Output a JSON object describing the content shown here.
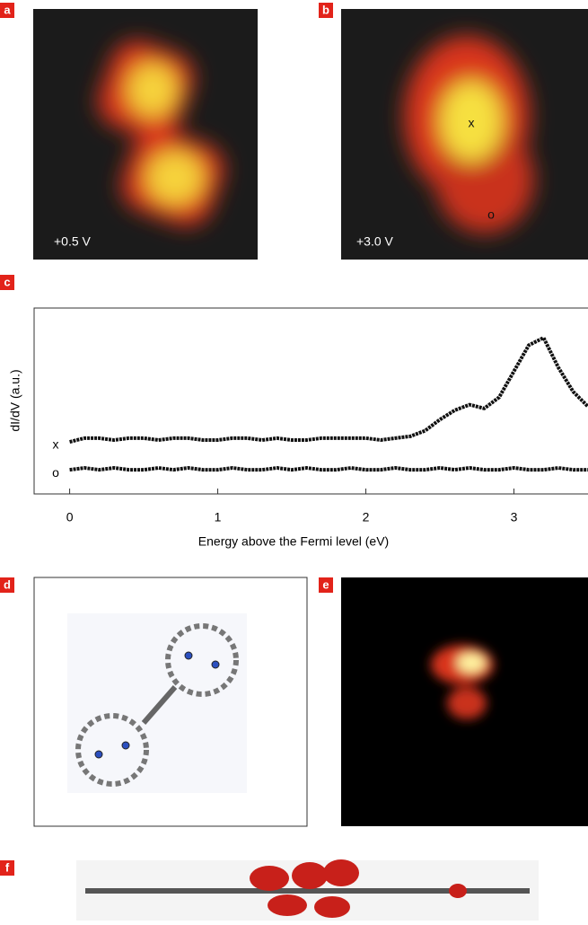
{
  "panels": [
    {
      "label": "a",
      "caption": "+0.5 V"
    },
    {
      "label": "b",
      "caption": "+3.0 V",
      "markers": [
        "x",
        "o"
      ]
    },
    {
      "label": "c"
    },
    {
      "label": "d"
    },
    {
      "label": "e"
    },
    {
      "label": "f"
    }
  ],
  "chart_data": {
    "type": "line",
    "xlabel": "Energy above the Fermi level (eV)",
    "ylabel": "dI/dV (a.u.)",
    "x": [
      0,
      0.1,
      0.2,
      0.3,
      0.4,
      0.5,
      0.6,
      0.7,
      0.8,
      0.9,
      1.0,
      1.1,
      1.2,
      1.3,
      1.4,
      1.5,
      1.6,
      1.7,
      1.8,
      1.9,
      2.0,
      2.1,
      2.2,
      2.3,
      2.4,
      2.5,
      2.6,
      2.7,
      2.8,
      2.9,
      3.0,
      3.1,
      3.2,
      3.3,
      3.4,
      3.5
    ],
    "series": [
      {
        "name": "x",
        "color": "#111111",
        "values": [
          0.28,
          0.3,
          0.3,
          0.29,
          0.3,
          0.3,
          0.29,
          0.3,
          0.3,
          0.29,
          0.29,
          0.3,
          0.3,
          0.29,
          0.3,
          0.29,
          0.29,
          0.3,
          0.3,
          0.3,
          0.3,
          0.29,
          0.3,
          0.31,
          0.34,
          0.4,
          0.45,
          0.48,
          0.46,
          0.52,
          0.66,
          0.8,
          0.84,
          0.68,
          0.55,
          0.47
        ]
      },
      {
        "name": "o",
        "color": "#111111",
        "values": [
          0.13,
          0.14,
          0.13,
          0.14,
          0.13,
          0.13,
          0.14,
          0.13,
          0.14,
          0.13,
          0.13,
          0.14,
          0.13,
          0.13,
          0.14,
          0.13,
          0.14,
          0.13,
          0.13,
          0.14,
          0.13,
          0.13,
          0.14,
          0.13,
          0.13,
          0.14,
          0.13,
          0.14,
          0.13,
          0.13,
          0.14,
          0.13,
          0.13,
          0.14,
          0.13,
          0.13
        ]
      }
    ],
    "xlim": [
      -0.24,
      3.5
    ],
    "ylim": [
      0,
      1
    ],
    "xticks": [
      0,
      1,
      2,
      3
    ]
  }
}
